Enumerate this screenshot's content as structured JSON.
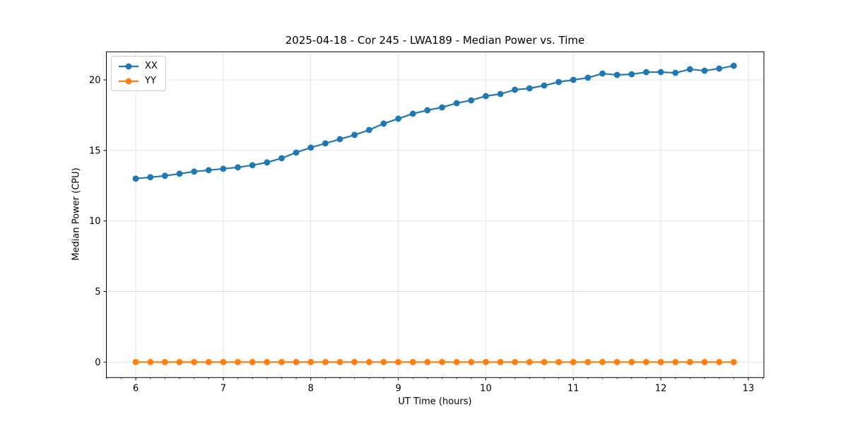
{
  "chart_data": {
    "type": "line",
    "title": "2025-04-18 - Cor 245 - LWA189 - Median Power vs. Time",
    "xlabel": "UT Time (hours)",
    "ylabel": "Median Power (CPU)",
    "xlim": [
      5.664,
      13.178
    ],
    "ylim": [
      -1.1,
      21.99
    ],
    "x_ticks": [
      6,
      7,
      8,
      9,
      10,
      11,
      12,
      13
    ],
    "y_ticks": [
      0,
      5,
      10,
      15,
      20
    ],
    "x_minor_step": 0.16667,
    "grid": "major",
    "grid_color": "#e0e0e0",
    "frame_color": "#000000",
    "legend_position": "upper-left",
    "marker": "o",
    "x": [
      6.0,
      6.167,
      6.333,
      6.5,
      6.667,
      6.833,
      7.0,
      7.167,
      7.333,
      7.5,
      7.667,
      7.833,
      8.0,
      8.167,
      8.333,
      8.5,
      8.667,
      8.833,
      9.0,
      9.167,
      9.333,
      9.5,
      9.667,
      9.833,
      10.0,
      10.167,
      10.333,
      10.5,
      10.667,
      10.833,
      11.0,
      11.167,
      11.333,
      11.5,
      11.667,
      11.833,
      12.0,
      12.167,
      12.333,
      12.5,
      12.667,
      12.833
    ],
    "series": [
      {
        "name": "XX",
        "color": "#1f77b4",
        "values": [
          13.0,
          13.1,
          13.2,
          13.35,
          13.5,
          13.6,
          13.7,
          13.8,
          13.95,
          14.15,
          14.45,
          14.85,
          15.2,
          15.5,
          15.8,
          16.1,
          16.45,
          16.9,
          17.25,
          17.6,
          17.85,
          18.05,
          18.35,
          18.55,
          18.85,
          19.0,
          19.3,
          19.4,
          19.6,
          19.85,
          20.0,
          20.15,
          20.45,
          20.35,
          20.4,
          20.55,
          20.55,
          20.5,
          20.75,
          20.65,
          20.8,
          21.0
        ]
      },
      {
        "name": "YY",
        "color": "#ff7f0e",
        "values": [
          0.0,
          0.0,
          0.0,
          0.0,
          0.0,
          0.0,
          0.0,
          0.0,
          0.0,
          0.0,
          0.0,
          0.0,
          0.0,
          0.0,
          0.0,
          0.0,
          0.0,
          0.0,
          0.0,
          0.0,
          0.0,
          0.0,
          0.0,
          0.0,
          0.0,
          0.0,
          0.0,
          0.0,
          0.0,
          0.0,
          0.0,
          0.0,
          0.0,
          0.0,
          0.0,
          0.0,
          0.0,
          0.0,
          0.0,
          0.0,
          0.0,
          0.0
        ]
      }
    ]
  }
}
